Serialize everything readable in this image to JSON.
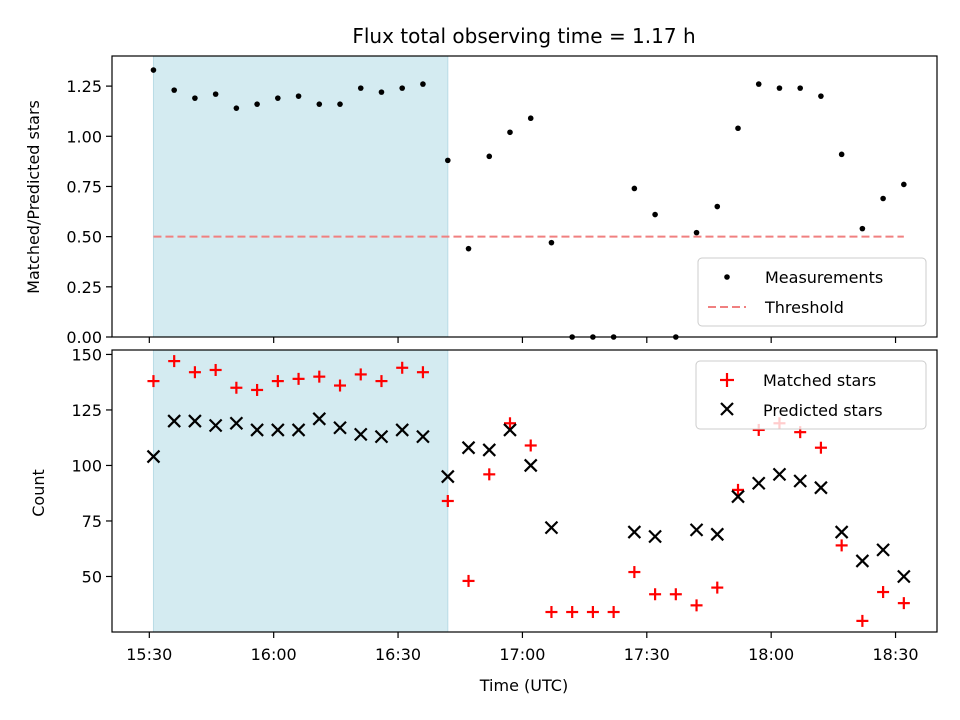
{
  "chart_data": [
    {
      "type": "scatter",
      "title": "Flux total observing time = 1.17 h",
      "xlabel": "",
      "ylabel": "Matched/Predicted stars",
      "ylim": [
        0,
        1.4
      ],
      "yticks": [
        0.0,
        0.25,
        0.5,
        0.75,
        1.0,
        1.25
      ],
      "ytick_labels": [
        "0.00",
        "0.25",
        "0.50",
        "0.75",
        "1.00",
        "1.25"
      ],
      "xlim": [
        "15:21",
        "18:40"
      ],
      "shaded_span": [
        "15:31",
        "16:42"
      ],
      "shade_color": "#d4ebf1",
      "legend": {
        "placement": "lower-right",
        "entries": [
          "Measurements",
          "Threshold"
        ]
      },
      "series": [
        {
          "name": "Measurements",
          "marker": "dot",
          "color": "#000000",
          "x": [
            "15:31",
            "15:36",
            "15:41",
            "15:46",
            "15:51",
            "15:56",
            "16:01",
            "16:06",
            "16:11",
            "16:16",
            "16:21",
            "16:26",
            "16:31",
            "16:36",
            "16:42",
            "16:47",
            "16:52",
            "16:57",
            "17:02",
            "17:07",
            "17:12",
            "17:17",
            "17:22",
            "17:27",
            "17:32",
            "17:37",
            "17:42",
            "17:47",
            "17:52",
            "17:57",
            "18:02",
            "18:07",
            "18:12",
            "18:17",
            "18:22",
            "18:27",
            "18:32"
          ],
          "y": [
            1.33,
            1.23,
            1.19,
            1.21,
            1.14,
            1.16,
            1.19,
            1.2,
            1.16,
            1.16,
            1.24,
            1.22,
            1.24,
            1.26,
            0.88,
            0.44,
            0.9,
            1.02,
            1.09,
            0.47,
            0.0,
            0.0,
            0.0,
            0.74,
            0.61,
            0.0,
            0.52,
            0.65,
            1.04,
            1.26,
            1.24,
            1.24,
            1.2,
            0.91,
            0.54,
            0.69,
            0.76
          ]
        },
        {
          "name": "Threshold",
          "style": "dashed",
          "color": "#f08080",
          "x": [
            "15:31",
            "18:32"
          ],
          "y": [
            0.5,
            0.5
          ]
        }
      ]
    },
    {
      "type": "scatter",
      "title": "",
      "xlabel": "Time (UTC)",
      "ylabel": "Count",
      "ylim": [
        25,
        152
      ],
      "yticks": [
        50,
        75,
        100,
        125,
        150
      ],
      "ytick_labels": [
        "50",
        "75",
        "100",
        "125",
        "150"
      ],
      "xlim": [
        "15:21",
        "18:40"
      ],
      "xticks": [
        "15:30",
        "16:00",
        "16:30",
        "17:00",
        "17:30",
        "18:00",
        "18:30"
      ],
      "xtick_labels": [
        "15:30",
        "16:00",
        "16:30",
        "17:00",
        "17:30",
        "18:00",
        "18:30"
      ],
      "shaded_span": [
        "15:31",
        "16:42"
      ],
      "shade_color": "#d4ebf1",
      "legend": {
        "placement": "top-right",
        "entries": [
          "Matched stars",
          "Predicted stars"
        ]
      },
      "series": [
        {
          "name": "Matched stars",
          "marker": "plus",
          "color": "#ff0000",
          "x": [
            "15:31",
            "15:36",
            "15:41",
            "15:46",
            "15:51",
            "15:56",
            "16:01",
            "16:06",
            "16:11",
            "16:16",
            "16:21",
            "16:26",
            "16:31",
            "16:36",
            "16:42",
            "16:47",
            "16:52",
            "16:57",
            "17:02",
            "17:07",
            "17:12",
            "17:17",
            "17:22",
            "17:27",
            "17:32",
            "17:37",
            "17:42",
            "17:47",
            "17:52",
            "17:57",
            "18:02",
            "18:07",
            "18:12",
            "18:17",
            "18:22",
            "18:27",
            "18:32"
          ],
          "y": [
            138,
            147,
            142,
            143,
            135,
            134,
            138,
            139,
            140,
            136,
            141,
            138,
            144,
            142,
            84,
            48,
            96,
            119,
            109,
            34,
            34,
            34,
            34,
            52,
            42,
            42,
            37,
            45,
            89,
            116,
            119,
            115,
            108,
            64,
            30,
            43,
            38
          ]
        },
        {
          "name": "Predicted stars",
          "marker": "x",
          "color": "#000000",
          "x": [
            "15:31",
            "15:36",
            "15:41",
            "15:46",
            "15:51",
            "15:56",
            "16:01",
            "16:06",
            "16:11",
            "16:16",
            "16:21",
            "16:26",
            "16:31",
            "16:36",
            "16:42",
            "16:47",
            "16:52",
            "16:57",
            "17:02",
            "17:07",
            "17:27",
            "17:32",
            "17:42",
            "17:47",
            "17:52",
            "17:57",
            "18:02",
            "18:07",
            "18:12",
            "18:17",
            "18:22",
            "18:27",
            "18:32"
          ],
          "y": [
            104,
            120,
            120,
            118,
            119,
            116,
            116,
            116,
            121,
            117,
            114,
            113,
            116,
            113,
            95,
            108,
            107,
            116,
            100,
            72,
            70,
            68,
            71,
            69,
            86,
            92,
            96,
            93,
            90,
            70,
            57,
            62,
            50
          ]
        }
      ]
    }
  ]
}
